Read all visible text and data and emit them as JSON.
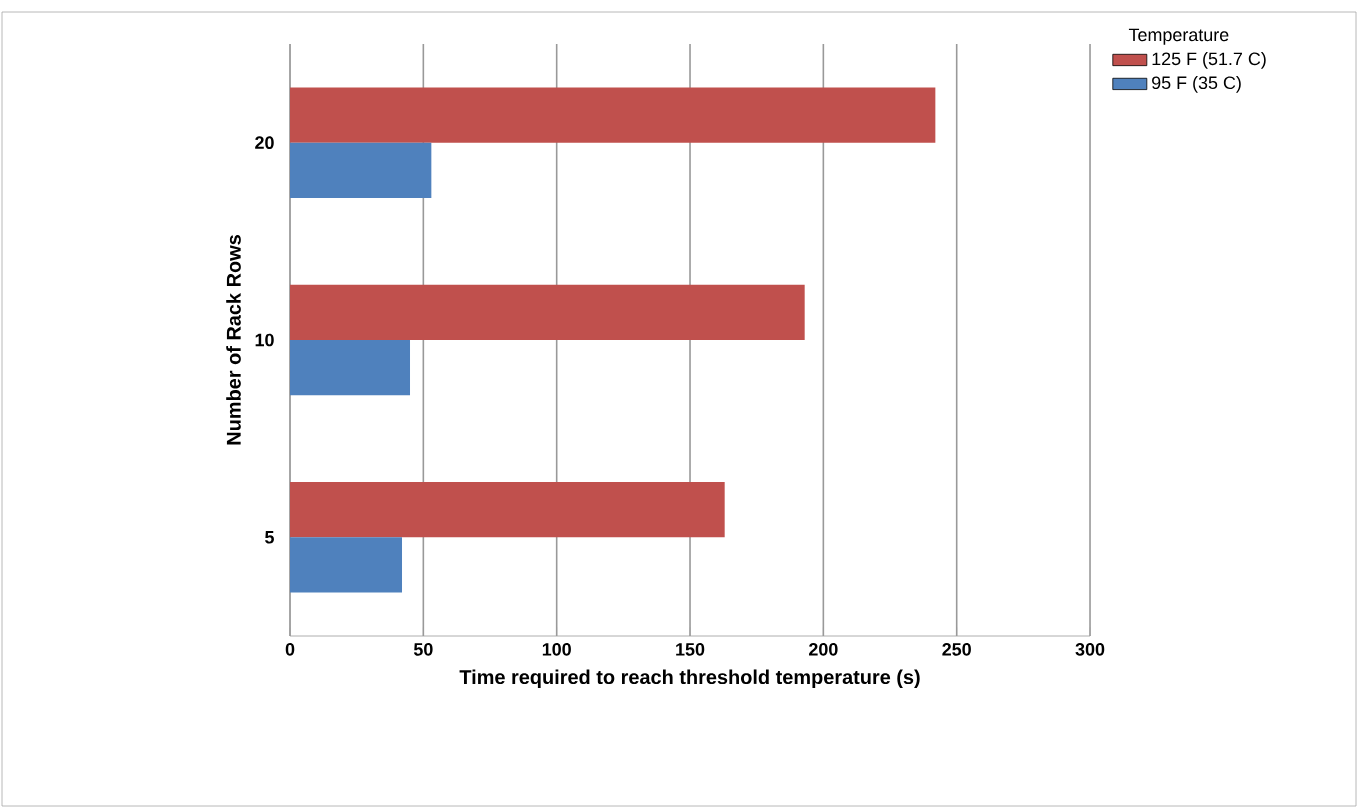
{
  "chart_data": {
    "type": "bar",
    "orientation": "horizontal",
    "xlabel": "Time required to reach threshold temperature (s)",
    "ylabel": "Number of Rack Rows",
    "legend_title": "Temperature",
    "categories": [
      "20",
      "10",
      "5"
    ],
    "series": [
      {
        "name": "125 F (51.7 C)",
        "color": "#c0504d",
        "values": [
          242,
          193,
          163
        ]
      },
      {
        "name": "95 F (35 C)",
        "color": "#4f81bd",
        "values": [
          53,
          45,
          42
        ]
      }
    ],
    "xlim": [
      0,
      300
    ],
    "xticks": [
      0,
      50,
      100,
      150,
      200,
      250,
      300
    ],
    "grid": "x",
    "legend": "top right"
  }
}
